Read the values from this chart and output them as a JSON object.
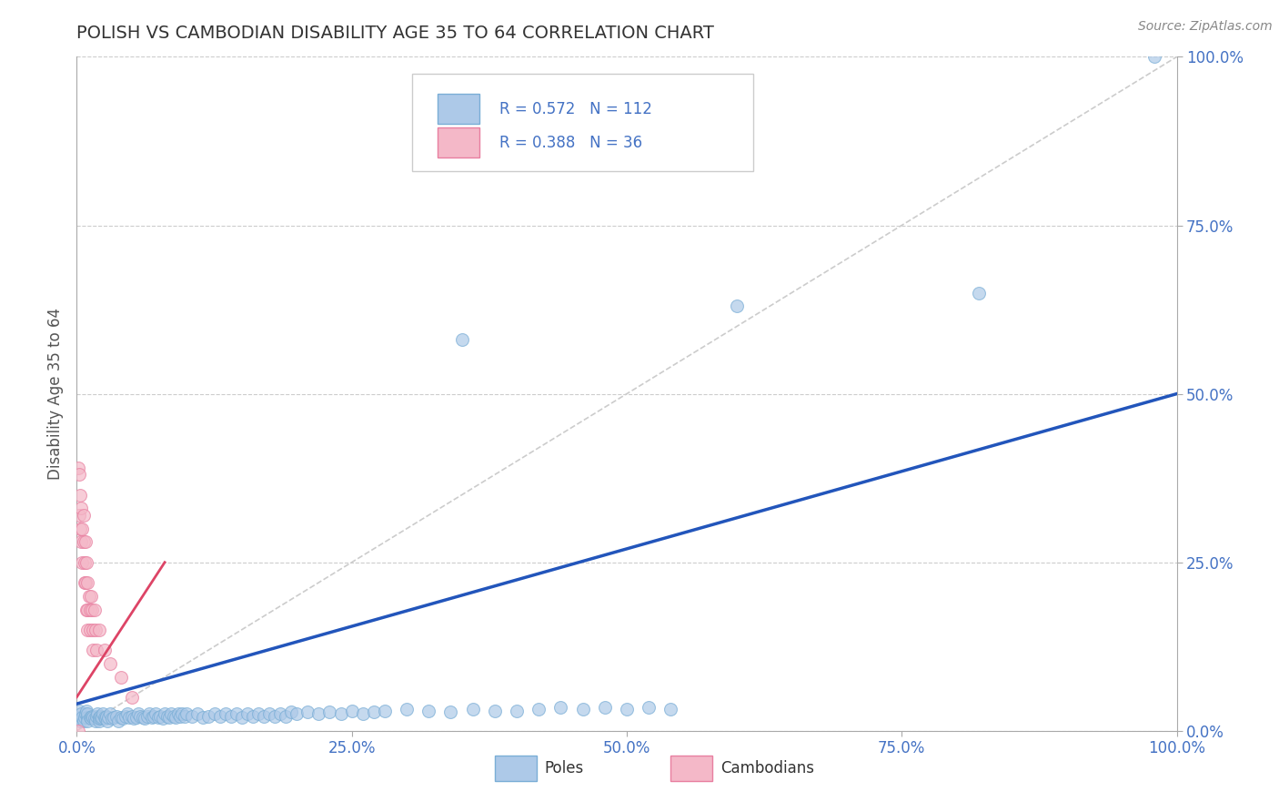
{
  "title": "POLISH VS CAMBODIAN DISABILITY AGE 35 TO 64 CORRELATION CHART",
  "source": "Source: ZipAtlas.com",
  "ylabel_label": "Disability Age 35 to 64",
  "x_min": 0.0,
  "x_max": 1.0,
  "y_min": 0.0,
  "y_max": 1.0,
  "x_ticks": [
    0.0,
    0.25,
    0.5,
    0.75,
    1.0
  ],
  "x_tick_labels": [
    "0.0%",
    "25.0%",
    "50.0%",
    "75.0%",
    "100.0%"
  ],
  "y_ticks": [
    0.0,
    0.25,
    0.5,
    0.75,
    1.0
  ],
  "y_tick_labels": [
    "0.0%",
    "25.0%",
    "50.0%",
    "75.0%",
    "100.0%"
  ],
  "poles_color": "#adc9e8",
  "poles_edge_color": "#7aaed6",
  "cambodians_color": "#f4b8c8",
  "cambodians_edge_color": "#e87fa0",
  "regression_poles_color": "#2255bb",
  "regression_cambodians_color": "#dd4466",
  "diagonal_color": "#cccccc",
  "background_color": "#ffffff",
  "grid_color": "#cccccc",
  "title_color": "#333333",
  "axis_label_color": "#555555",
  "tick_label_color": "#4472c4",
  "marker_size": 100,
  "poles_data": [
    [
      0.001,
      0.02
    ],
    [
      0.002,
      0.03
    ],
    [
      0.003,
      0.015
    ],
    [
      0.004,
      0.025
    ],
    [
      0.005,
      0.02
    ],
    [
      0.006,
      0.015
    ],
    [
      0.007,
      0.02
    ],
    [
      0.008,
      0.025
    ],
    [
      0.009,
      0.03
    ],
    [
      0.01,
      0.02
    ],
    [
      0.01,
      0.025
    ],
    [
      0.01,
      0.015
    ],
    [
      0.012,
      0.02
    ],
    [
      0.013,
      0.018
    ],
    [
      0.014,
      0.022
    ],
    [
      0.015,
      0.02
    ],
    [
      0.016,
      0.018
    ],
    [
      0.017,
      0.015
    ],
    [
      0.018,
      0.022
    ],
    [
      0.019,
      0.025
    ],
    [
      0.02,
      0.02
    ],
    [
      0.02,
      0.015
    ],
    [
      0.02,
      0.018
    ],
    [
      0.021,
      0.022
    ],
    [
      0.022,
      0.018
    ],
    [
      0.023,
      0.02
    ],
    [
      0.024,
      0.025
    ],
    [
      0.025,
      0.02
    ],
    [
      0.026,
      0.018
    ],
    [
      0.027,
      0.022
    ],
    [
      0.028,
      0.015
    ],
    [
      0.029,
      0.02
    ],
    [
      0.03,
      0.025
    ],
    [
      0.032,
      0.018
    ],
    [
      0.034,
      0.02
    ],
    [
      0.036,
      0.022
    ],
    [
      0.038,
      0.015
    ],
    [
      0.04,
      0.02
    ],
    [
      0.042,
      0.018
    ],
    [
      0.044,
      0.022
    ],
    [
      0.046,
      0.025
    ],
    [
      0.048,
      0.02
    ],
    [
      0.05,
      0.022
    ],
    [
      0.052,
      0.018
    ],
    [
      0.054,
      0.02
    ],
    [
      0.056,
      0.025
    ],
    [
      0.058,
      0.022
    ],
    [
      0.06,
      0.02
    ],
    [
      0.062,
      0.018
    ],
    [
      0.064,
      0.022
    ],
    [
      0.066,
      0.025
    ],
    [
      0.068,
      0.02
    ],
    [
      0.07,
      0.022
    ],
    [
      0.072,
      0.025
    ],
    [
      0.074,
      0.02
    ],
    [
      0.076,
      0.022
    ],
    [
      0.078,
      0.018
    ],
    [
      0.08,
      0.025
    ],
    [
      0.082,
      0.022
    ],
    [
      0.084,
      0.02
    ],
    [
      0.086,
      0.025
    ],
    [
      0.088,
      0.022
    ],
    [
      0.09,
      0.02
    ],
    [
      0.092,
      0.025
    ],
    [
      0.094,
      0.022
    ],
    [
      0.096,
      0.025
    ],
    [
      0.098,
      0.022
    ],
    [
      0.1,
      0.025
    ],
    [
      0.105,
      0.022
    ],
    [
      0.11,
      0.025
    ],
    [
      0.115,
      0.02
    ],
    [
      0.12,
      0.022
    ],
    [
      0.125,
      0.025
    ],
    [
      0.13,
      0.022
    ],
    [
      0.135,
      0.025
    ],
    [
      0.14,
      0.022
    ],
    [
      0.145,
      0.025
    ],
    [
      0.15,
      0.02
    ],
    [
      0.155,
      0.025
    ],
    [
      0.16,
      0.022
    ],
    [
      0.165,
      0.025
    ],
    [
      0.17,
      0.022
    ],
    [
      0.175,
      0.025
    ],
    [
      0.18,
      0.022
    ],
    [
      0.185,
      0.025
    ],
    [
      0.19,
      0.022
    ],
    [
      0.195,
      0.028
    ],
    [
      0.2,
      0.025
    ],
    [
      0.21,
      0.028
    ],
    [
      0.22,
      0.025
    ],
    [
      0.23,
      0.028
    ],
    [
      0.24,
      0.025
    ],
    [
      0.25,
      0.03
    ],
    [
      0.26,
      0.025
    ],
    [
      0.27,
      0.028
    ],
    [
      0.28,
      0.03
    ],
    [
      0.3,
      0.032
    ],
    [
      0.32,
      0.03
    ],
    [
      0.34,
      0.028
    ],
    [
      0.36,
      0.032
    ],
    [
      0.38,
      0.03
    ],
    [
      0.4,
      0.03
    ],
    [
      0.42,
      0.032
    ],
    [
      0.44,
      0.035
    ],
    [
      0.46,
      0.032
    ],
    [
      0.48,
      0.035
    ],
    [
      0.35,
      0.58
    ],
    [
      0.5,
      0.032
    ],
    [
      0.52,
      0.035
    ],
    [
      0.54,
      0.032
    ],
    [
      0.6,
      0.63
    ],
    [
      0.82,
      0.65
    ],
    [
      0.98,
      1.0
    ]
  ],
  "cambodians_data": [
    [
      0.001,
      0.39
    ],
    [
      0.002,
      0.38
    ],
    [
      0.002,
      0.32
    ],
    [
      0.003,
      0.35
    ],
    [
      0.003,
      0.3
    ],
    [
      0.004,
      0.28
    ],
    [
      0.004,
      0.33
    ],
    [
      0.005,
      0.3
    ],
    [
      0.005,
      0.25
    ],
    [
      0.006,
      0.32
    ],
    [
      0.006,
      0.28
    ],
    [
      0.007,
      0.25
    ],
    [
      0.007,
      0.22
    ],
    [
      0.008,
      0.28
    ],
    [
      0.008,
      0.22
    ],
    [
      0.009,
      0.18
    ],
    [
      0.009,
      0.25
    ],
    [
      0.01,
      0.22
    ],
    [
      0.01,
      0.18
    ],
    [
      0.01,
      0.15
    ],
    [
      0.011,
      0.2
    ],
    [
      0.012,
      0.18
    ],
    [
      0.012,
      0.15
    ],
    [
      0.013,
      0.2
    ],
    [
      0.014,
      0.18
    ],
    [
      0.015,
      0.15
    ],
    [
      0.015,
      0.12
    ],
    [
      0.016,
      0.18
    ],
    [
      0.017,
      0.15
    ],
    [
      0.018,
      0.12
    ],
    [
      0.02,
      0.15
    ],
    [
      0.025,
      0.12
    ],
    [
      0.03,
      0.1
    ],
    [
      0.04,
      0.08
    ],
    [
      0.05,
      0.05
    ],
    [
      0.001,
      0.0
    ]
  ]
}
